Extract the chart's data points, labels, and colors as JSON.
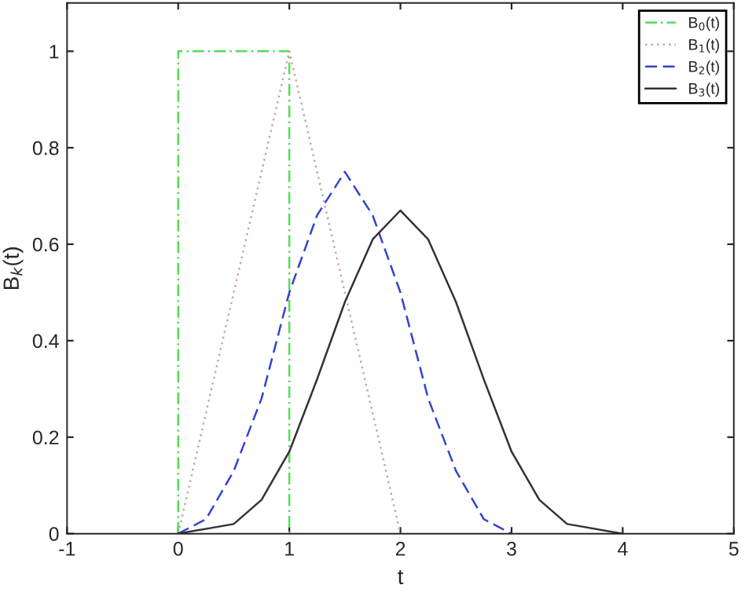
{
  "chart_data": {
    "type": "line",
    "xlabel": "t",
    "ylabel": "B$_{k}$(t)",
    "xlim": [
      -1,
      5
    ],
    "xticks": [
      -1,
      0,
      1,
      2,
      3,
      4,
      5
    ],
    "ylim": [
      0,
      1.1
    ],
    "yticks": [
      0,
      0.2,
      0.4,
      0.6,
      0.8,
      1
    ],
    "grid": false,
    "legend": "top right",
    "marker": "none",
    "series": [
      {
        "name": "B$_{0}$(t)",
        "color": "#55dd55",
        "line_style": "dashdot",
        "x": [
          0,
          0,
          1,
          1
        ],
        "values": [
          0,
          1,
          1,
          0
        ]
      },
      {
        "name": "B$_{1}$(t)",
        "color": "#c8a8a8",
        "line_style": "dotted",
        "x": [
          0,
          1,
          2
        ],
        "values": [
          0,
          1,
          0
        ]
      },
      {
        "name": "B$_{2}$(t)",
        "color": "#3344cc",
        "line_style": "dashed",
        "x": [
          0,
          0.25,
          0.5,
          0.75,
          1,
          1.25,
          1.5,
          1.75,
          2,
          2.25,
          2.5,
          2.75,
          3
        ],
        "values": [
          0,
          0.03,
          0.13,
          0.28,
          0.5,
          0.66,
          0.75,
          0.66,
          0.5,
          0.28,
          0.13,
          0.03,
          0
        ]
      },
      {
        "name": "B$_{3}$(t)",
        "color": "#333333",
        "line_style": "solid",
        "x": [
          0,
          0.5,
          0.75,
          1,
          1.25,
          1.5,
          1.75,
          2,
          2.25,
          2.5,
          2.75,
          3,
          3.25,
          3.5,
          4
        ],
        "values": [
          0,
          0.02,
          0.07,
          0.17,
          0.32,
          0.48,
          0.61,
          0.67,
          0.61,
          0.48,
          0.32,
          0.17,
          0.07,
          0.02,
          0
        ]
      }
    ]
  }
}
